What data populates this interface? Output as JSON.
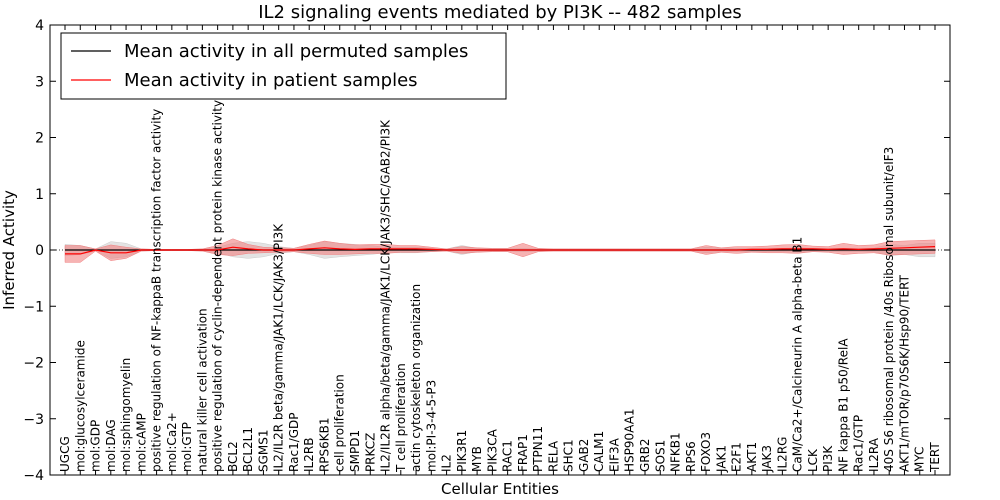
{
  "chart_data": {
    "type": "line",
    "title": "IL2 signaling events mediated by PI3K -- 482 samples",
    "xlabel": "Cellular Entities",
    "ylabel": "Inferred Activity",
    "ylim": [
      -4,
      4
    ],
    "yticks": [
      "4",
      "3",
      "2",
      "1",
      "0",
      "−1",
      "−2",
      "−3",
      "−4"
    ],
    "legend_position": "top-left",
    "grid": false,
    "categories": [
      "UGCG",
      "mol:glucosylceramide",
      "mol:GDP",
      "mol:DAG",
      "mol:sphingomyelin",
      "mol:cAMP",
      "positive regulation of NF-kappaB transcription factor activity",
      "mol:Ca2+",
      "mol:GTP",
      "natural killer cell activation",
      "positive regulation of cyclin-dependent protein kinase activity",
      "BCL2",
      "BCL2L1",
      "SGMS1",
      "IL2/IL2R beta/gamma/JAK1/LCK/JAK3/PI3K",
      "Rac1/GDP",
      "IL2RB",
      "RPS6KB1",
      "cell proliferation",
      "SMPD1",
      "PRKCZ",
      "IL2/IL2R alpha/beta/gamma/JAK1/LCK/JAK3/SHC/GAB2/PI3K",
      "T cell proliferation",
      "actin cytoskeleton organization",
      "mol:PI-3-4-5-P3",
      "IL2",
      "PIK3R1",
      "MYB",
      "PIK3CA",
      "RAC1",
      "FRAP1",
      "PTPN11",
      "RELA",
      "SHC1",
      "GAB2",
      "CALM1",
      "EIF3A",
      "HSP90AA1",
      "GRB2",
      "SOS1",
      "NFKB1",
      "RPS6",
      "FOXO3",
      "JAK1",
      "E2F1",
      "AKT1",
      "JAK3",
      "IL2RG",
      "CaM/Ca2+/Calcineurin A alpha-beta B1",
      "LCK",
      "PI3K",
      "NF kappa B1 p50/RelA",
      "Rac1/GTP",
      "IL2RA",
      "40S S6 ribosomal protein /40s Ribosomal subunit/eIF3",
      "AKT1/mTOR/p70S6K/Hsp90/TERT",
      "MYC",
      "TERT"
    ],
    "series": [
      {
        "name": "Mean activity in all permuted samples",
        "color": "#000000",
        "band_color": "#cccccc",
        "values": [
          0.0,
          0.0,
          0.0,
          0.0,
          0.0,
          0.0,
          0.0,
          0.0,
          0.0,
          0.0,
          0.0,
          0.0,
          0.0,
          0.0,
          0.0,
          0.0,
          0.0,
          0.0,
          0.0,
          0.0,
          0.0,
          0.0,
          0.0,
          0.0,
          0.0,
          0.0,
          0.0,
          0.0,
          0.0,
          0.0,
          0.0,
          0.0,
          0.0,
          0.0,
          0.0,
          0.0,
          0.0,
          0.0,
          0.0,
          0.0,
          0.0,
          0.0,
          0.0,
          0.0,
          0.0,
          0.0,
          0.0,
          0.0,
          0.0,
          0.0,
          0.0,
          0.0,
          0.0,
          0.0,
          0.0,
          0.0,
          0.0,
          0.0
        ],
        "band": [
          0.1,
          0.08,
          0.02,
          0.15,
          0.12,
          0.02,
          0.01,
          0.01,
          0.01,
          0.02,
          0.05,
          0.12,
          0.15,
          0.12,
          0.06,
          0.03,
          0.08,
          0.15,
          0.12,
          0.1,
          0.08,
          0.05,
          0.05,
          0.05,
          0.03,
          0.02,
          0.08,
          0.03,
          0.02,
          0.02,
          0.03,
          0.02,
          0.02,
          0.02,
          0.02,
          0.02,
          0.02,
          0.02,
          0.02,
          0.02,
          0.02,
          0.02,
          0.05,
          0.03,
          0.03,
          0.03,
          0.03,
          0.03,
          0.04,
          0.03,
          0.03,
          0.03,
          0.03,
          0.03,
          0.1,
          0.08,
          0.12,
          0.12
        ]
      },
      {
        "name": "Mean activity in patient samples",
        "color": "#ff0000",
        "band_color": "#f08080",
        "values": [
          -0.07,
          -0.07,
          0.0,
          -0.05,
          -0.05,
          0.0,
          0.0,
          0.0,
          0.0,
          0.0,
          0.0,
          0.05,
          0.02,
          0.0,
          0.0,
          0.0,
          0.02,
          0.04,
          0.02,
          0.01,
          0.02,
          0.02,
          0.02,
          0.02,
          0.01,
          0.0,
          0.0,
          0.0,
          0.0,
          0.0,
          0.0,
          0.0,
          0.0,
          0.0,
          0.0,
          0.0,
          0.0,
          0.0,
          0.0,
          0.0,
          0.0,
          0.0,
          0.0,
          0.0,
          0.0,
          0.01,
          0.01,
          0.02,
          0.02,
          0.02,
          0.01,
          0.02,
          0.01,
          0.02,
          0.03,
          0.04,
          0.05,
          0.06
        ],
        "band": [
          0.15,
          0.15,
          0.02,
          0.14,
          0.1,
          0.02,
          0.01,
          0.01,
          0.01,
          0.02,
          0.08,
          0.15,
          0.08,
          0.05,
          0.04,
          0.03,
          0.08,
          0.12,
          0.1,
          0.08,
          0.08,
          0.08,
          0.06,
          0.06,
          0.04,
          0.02,
          0.06,
          0.04,
          0.03,
          0.03,
          0.12,
          0.03,
          0.02,
          0.02,
          0.02,
          0.02,
          0.02,
          0.02,
          0.02,
          0.02,
          0.02,
          0.02,
          0.08,
          0.04,
          0.06,
          0.05,
          0.06,
          0.07,
          0.08,
          0.05,
          0.05,
          0.1,
          0.07,
          0.07,
          0.12,
          0.12,
          0.12,
          0.12
        ]
      }
    ]
  }
}
